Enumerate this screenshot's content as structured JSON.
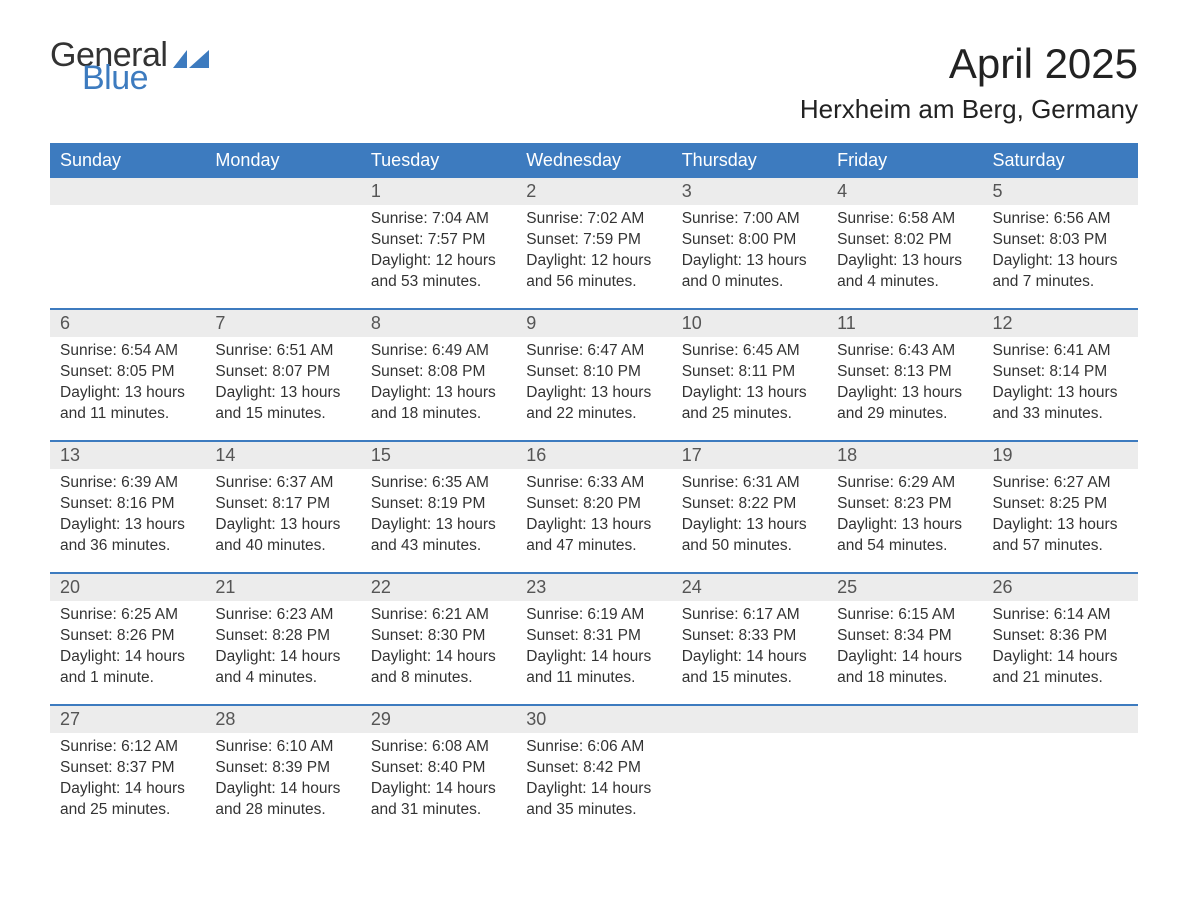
{
  "logo": {
    "word1": "General",
    "word2": "Blue"
  },
  "title": "April 2025",
  "location": "Herxheim am Berg, Germany",
  "colors": {
    "header_bg": "#3d7bbf",
    "header_text": "#ffffff",
    "daynum_bg": "#ececec",
    "body_text": "#333333",
    "rule": "#3d7bbf",
    "page_bg": "#ffffff",
    "logo_accent": "#3d7bbf"
  },
  "day_headers": [
    "Sunday",
    "Monday",
    "Tuesday",
    "Wednesday",
    "Thursday",
    "Friday",
    "Saturday"
  ],
  "weeks": [
    [
      {
        "n": "",
        "sunrise": "",
        "sunset": "",
        "daylight": ""
      },
      {
        "n": "",
        "sunrise": "",
        "sunset": "",
        "daylight": ""
      },
      {
        "n": "1",
        "sunrise": "Sunrise: 7:04 AM",
        "sunset": "Sunset: 7:57 PM",
        "daylight": "Daylight: 12 hours and 53 minutes."
      },
      {
        "n": "2",
        "sunrise": "Sunrise: 7:02 AM",
        "sunset": "Sunset: 7:59 PM",
        "daylight": "Daylight: 12 hours and 56 minutes."
      },
      {
        "n": "3",
        "sunrise": "Sunrise: 7:00 AM",
        "sunset": "Sunset: 8:00 PM",
        "daylight": "Daylight: 13 hours and 0 minutes."
      },
      {
        "n": "4",
        "sunrise": "Sunrise: 6:58 AM",
        "sunset": "Sunset: 8:02 PM",
        "daylight": "Daylight: 13 hours and 4 minutes."
      },
      {
        "n": "5",
        "sunrise": "Sunrise: 6:56 AM",
        "sunset": "Sunset: 8:03 PM",
        "daylight": "Daylight: 13 hours and 7 minutes."
      }
    ],
    [
      {
        "n": "6",
        "sunrise": "Sunrise: 6:54 AM",
        "sunset": "Sunset: 8:05 PM",
        "daylight": "Daylight: 13 hours and 11 minutes."
      },
      {
        "n": "7",
        "sunrise": "Sunrise: 6:51 AM",
        "sunset": "Sunset: 8:07 PM",
        "daylight": "Daylight: 13 hours and 15 minutes."
      },
      {
        "n": "8",
        "sunrise": "Sunrise: 6:49 AM",
        "sunset": "Sunset: 8:08 PM",
        "daylight": "Daylight: 13 hours and 18 minutes."
      },
      {
        "n": "9",
        "sunrise": "Sunrise: 6:47 AM",
        "sunset": "Sunset: 8:10 PM",
        "daylight": "Daylight: 13 hours and 22 minutes."
      },
      {
        "n": "10",
        "sunrise": "Sunrise: 6:45 AM",
        "sunset": "Sunset: 8:11 PM",
        "daylight": "Daylight: 13 hours and 25 minutes."
      },
      {
        "n": "11",
        "sunrise": "Sunrise: 6:43 AM",
        "sunset": "Sunset: 8:13 PM",
        "daylight": "Daylight: 13 hours and 29 minutes."
      },
      {
        "n": "12",
        "sunrise": "Sunrise: 6:41 AM",
        "sunset": "Sunset: 8:14 PM",
        "daylight": "Daylight: 13 hours and 33 minutes."
      }
    ],
    [
      {
        "n": "13",
        "sunrise": "Sunrise: 6:39 AM",
        "sunset": "Sunset: 8:16 PM",
        "daylight": "Daylight: 13 hours and 36 minutes."
      },
      {
        "n": "14",
        "sunrise": "Sunrise: 6:37 AM",
        "sunset": "Sunset: 8:17 PM",
        "daylight": "Daylight: 13 hours and 40 minutes."
      },
      {
        "n": "15",
        "sunrise": "Sunrise: 6:35 AM",
        "sunset": "Sunset: 8:19 PM",
        "daylight": "Daylight: 13 hours and 43 minutes."
      },
      {
        "n": "16",
        "sunrise": "Sunrise: 6:33 AM",
        "sunset": "Sunset: 8:20 PM",
        "daylight": "Daylight: 13 hours and 47 minutes."
      },
      {
        "n": "17",
        "sunrise": "Sunrise: 6:31 AM",
        "sunset": "Sunset: 8:22 PM",
        "daylight": "Daylight: 13 hours and 50 minutes."
      },
      {
        "n": "18",
        "sunrise": "Sunrise: 6:29 AM",
        "sunset": "Sunset: 8:23 PM",
        "daylight": "Daylight: 13 hours and 54 minutes."
      },
      {
        "n": "19",
        "sunrise": "Sunrise: 6:27 AM",
        "sunset": "Sunset: 8:25 PM",
        "daylight": "Daylight: 13 hours and 57 minutes."
      }
    ],
    [
      {
        "n": "20",
        "sunrise": "Sunrise: 6:25 AM",
        "sunset": "Sunset: 8:26 PM",
        "daylight": "Daylight: 14 hours and 1 minute."
      },
      {
        "n": "21",
        "sunrise": "Sunrise: 6:23 AM",
        "sunset": "Sunset: 8:28 PM",
        "daylight": "Daylight: 14 hours and 4 minutes."
      },
      {
        "n": "22",
        "sunrise": "Sunrise: 6:21 AM",
        "sunset": "Sunset: 8:30 PM",
        "daylight": "Daylight: 14 hours and 8 minutes."
      },
      {
        "n": "23",
        "sunrise": "Sunrise: 6:19 AM",
        "sunset": "Sunset: 8:31 PM",
        "daylight": "Daylight: 14 hours and 11 minutes."
      },
      {
        "n": "24",
        "sunrise": "Sunrise: 6:17 AM",
        "sunset": "Sunset: 8:33 PM",
        "daylight": "Daylight: 14 hours and 15 minutes."
      },
      {
        "n": "25",
        "sunrise": "Sunrise: 6:15 AM",
        "sunset": "Sunset: 8:34 PM",
        "daylight": "Daylight: 14 hours and 18 minutes."
      },
      {
        "n": "26",
        "sunrise": "Sunrise: 6:14 AM",
        "sunset": "Sunset: 8:36 PM",
        "daylight": "Daylight: 14 hours and 21 minutes."
      }
    ],
    [
      {
        "n": "27",
        "sunrise": "Sunrise: 6:12 AM",
        "sunset": "Sunset: 8:37 PM",
        "daylight": "Daylight: 14 hours and 25 minutes."
      },
      {
        "n": "28",
        "sunrise": "Sunrise: 6:10 AM",
        "sunset": "Sunset: 8:39 PM",
        "daylight": "Daylight: 14 hours and 28 minutes."
      },
      {
        "n": "29",
        "sunrise": "Sunrise: 6:08 AM",
        "sunset": "Sunset: 8:40 PM",
        "daylight": "Daylight: 14 hours and 31 minutes."
      },
      {
        "n": "30",
        "sunrise": "Sunrise: 6:06 AM",
        "sunset": "Sunset: 8:42 PM",
        "daylight": "Daylight: 14 hours and 35 minutes."
      },
      {
        "n": "",
        "sunrise": "",
        "sunset": "",
        "daylight": ""
      },
      {
        "n": "",
        "sunrise": "",
        "sunset": "",
        "daylight": ""
      },
      {
        "n": "",
        "sunrise": "",
        "sunset": "",
        "daylight": ""
      }
    ]
  ]
}
